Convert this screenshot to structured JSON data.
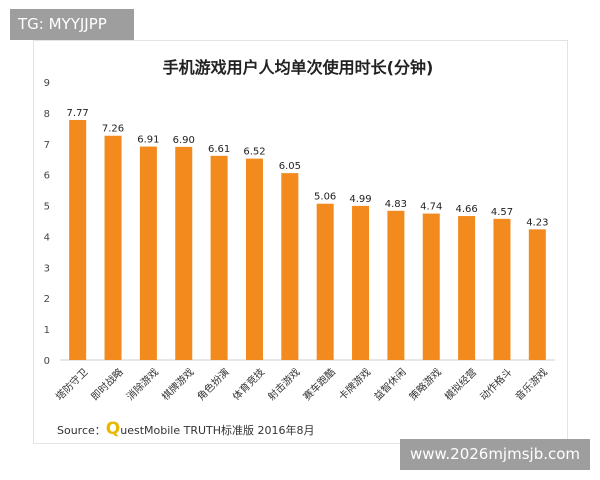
{
  "watermarks": {
    "top": "TG: MYYJJPP",
    "bottom": "www.2026mjmsjb.com"
  },
  "source": {
    "prefix": "Source：",
    "q": "Q",
    "rest": "uestMobile TRUTH标准版 2016年8月"
  },
  "chart_data": {
    "type": "bar",
    "title": "手机游戏用户人均单次使用时长(分钟)",
    "xlabel": "",
    "ylabel": "",
    "ylim": [
      0,
      9
    ],
    "yticks": [
      0,
      1,
      2,
      3,
      4,
      5,
      6,
      7,
      8,
      9
    ],
    "grid": false,
    "legend": "none",
    "bar_color": "#f28a1e",
    "categories": [
      "塔防守卫",
      "即时战略",
      "消除游戏",
      "棋牌游戏",
      "角色扮演",
      "体育竞技",
      "射击游戏",
      "赛车跑酷",
      "卡牌游戏",
      "益智休闲",
      "策略游戏",
      "模拟经营",
      "动作格斗",
      "音乐游戏"
    ],
    "values": [
      7.77,
      7.26,
      6.91,
      6.9,
      6.61,
      6.52,
      6.05,
      5.06,
      4.99,
      4.83,
      4.74,
      4.66,
      4.57,
      4.23
    ],
    "value_labels": [
      "7.77",
      "7.26",
      "6.91",
      "6.90",
      "6.61",
      "6.52",
      "6.05",
      "5.06",
      "4.99",
      "4.83",
      "4.74",
      "4.66",
      "4.57",
      "4.23"
    ]
  }
}
